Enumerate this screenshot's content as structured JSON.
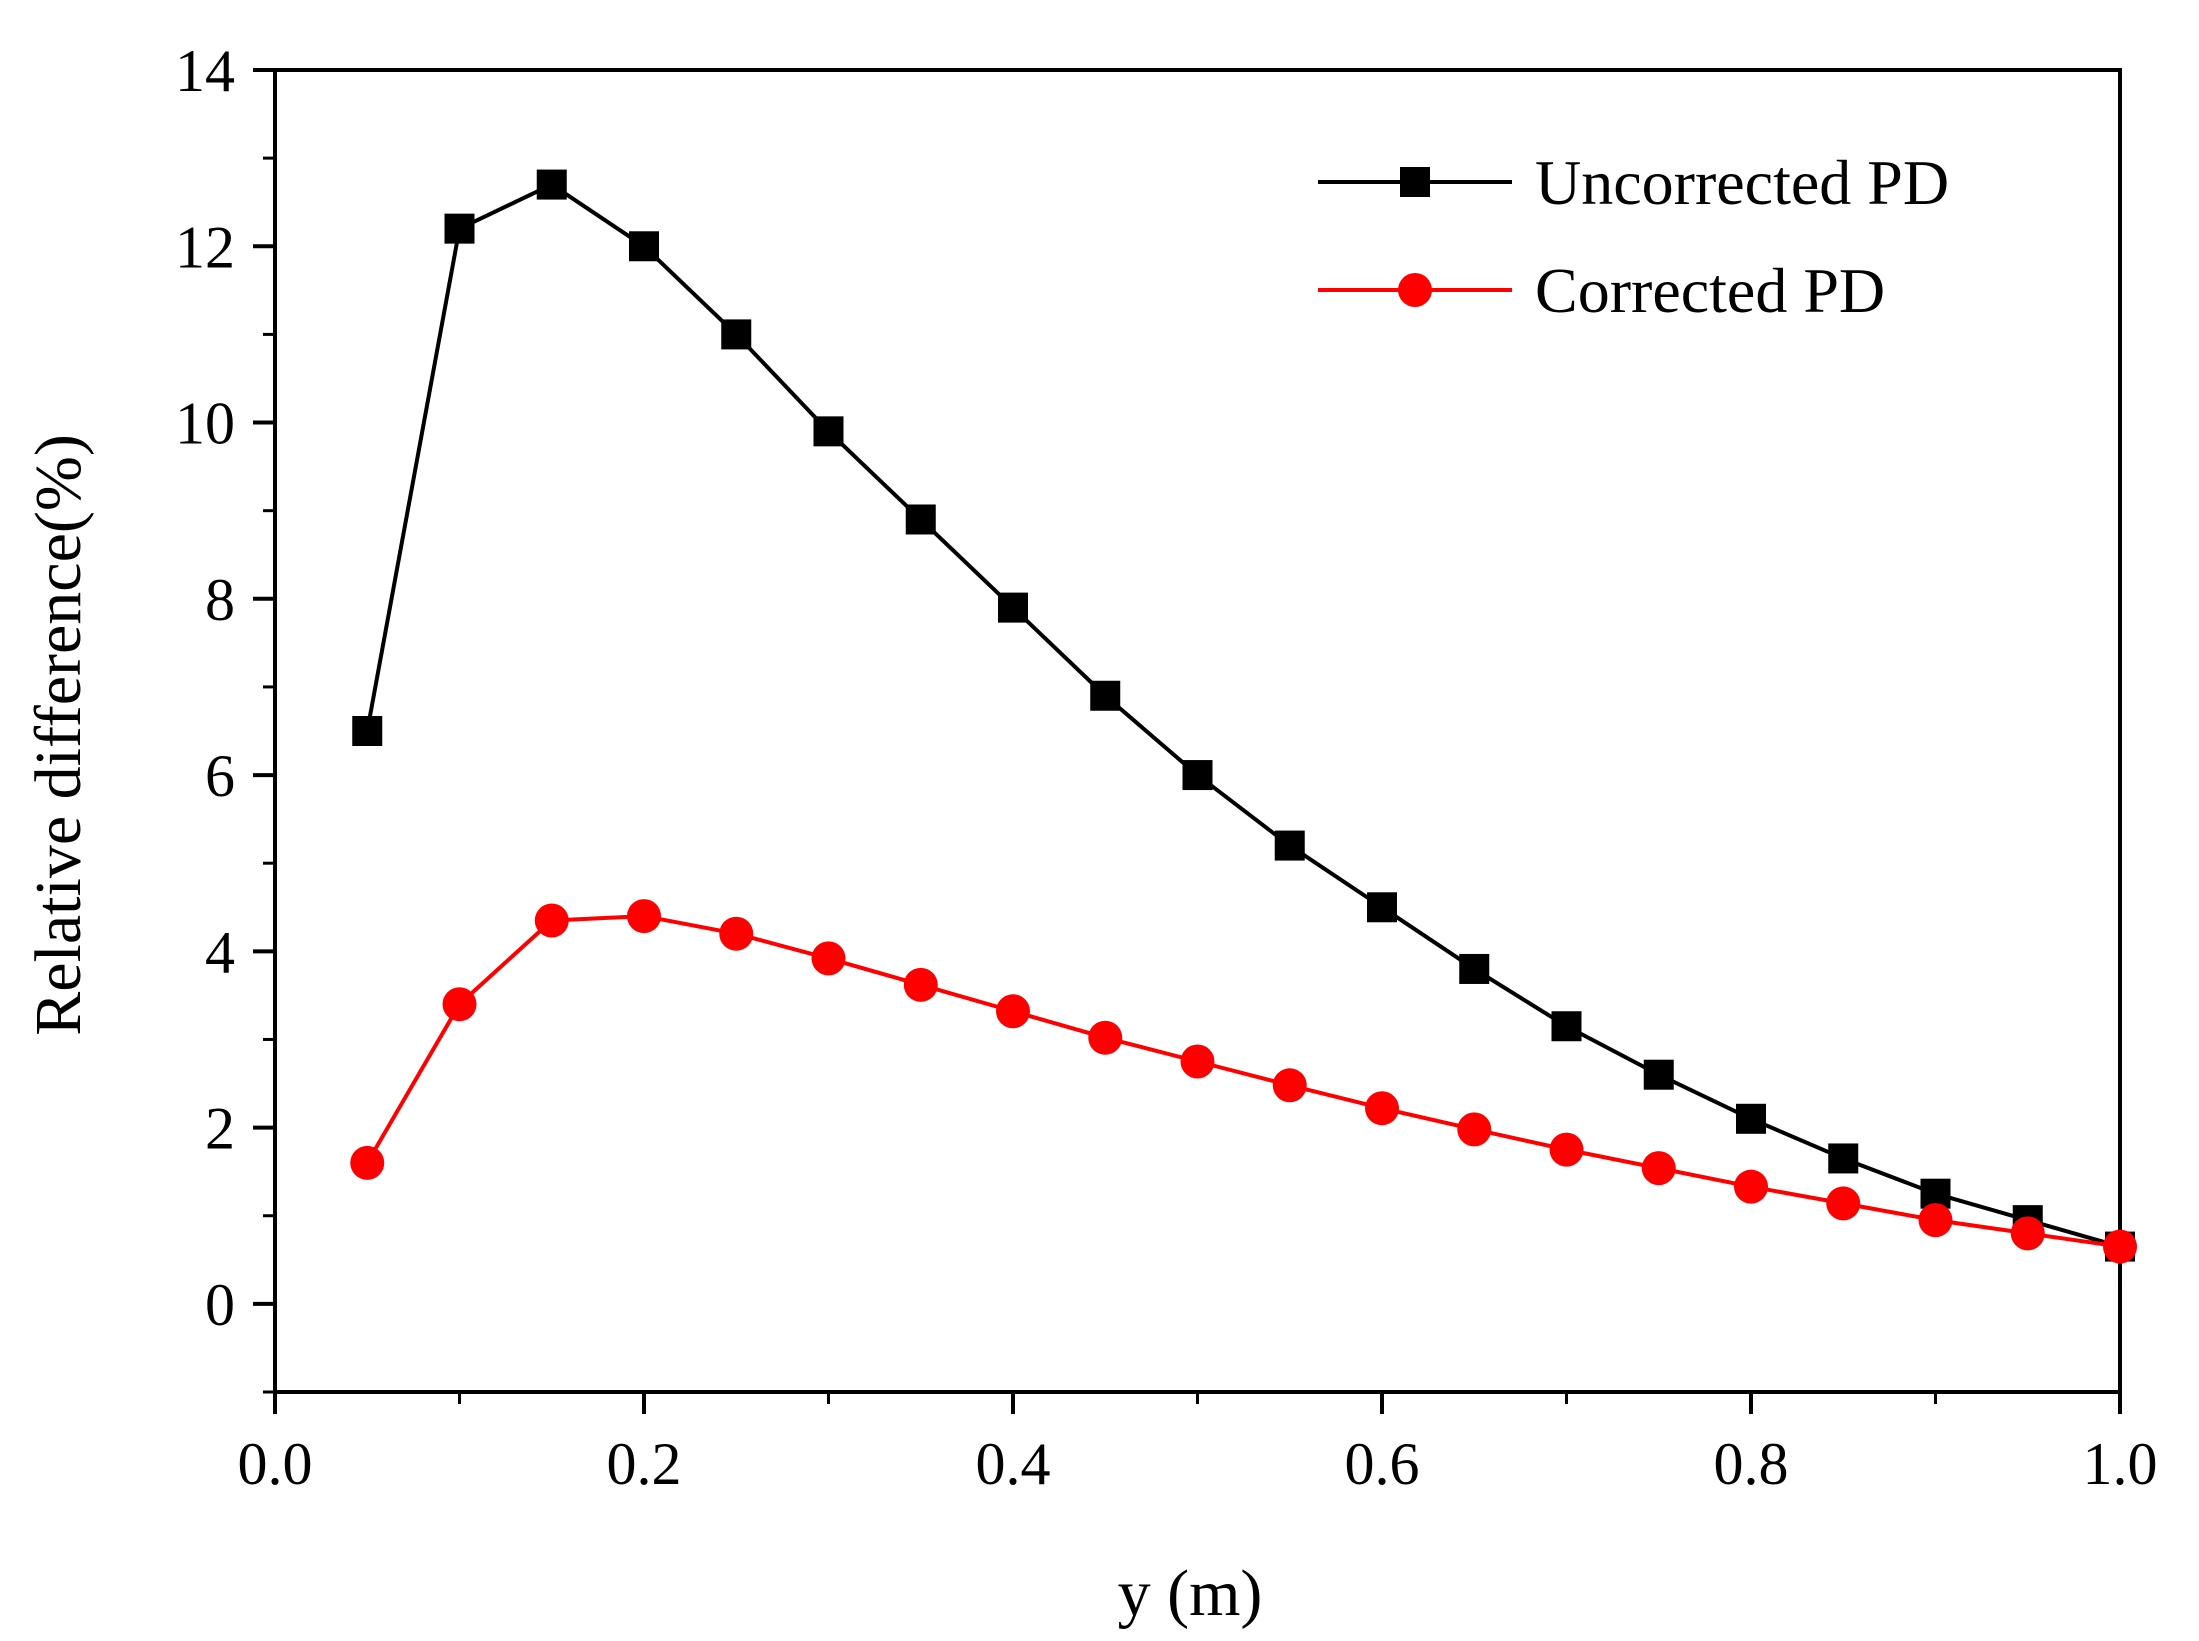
{
  "chart_data": {
    "type": "line",
    "title": "",
    "xlabel": "y (m)",
    "ylabel": "Relative difference(%)",
    "xlim": [
      0.0,
      1.0
    ],
    "ylim": [
      -1,
      14
    ],
    "x_ticks": [
      "0.0",
      "0.2",
      "0.4",
      "0.6",
      "0.8",
      "1.0"
    ],
    "y_ticks": [
      "0",
      "2",
      "4",
      "6",
      "8",
      "10",
      "12",
      "14"
    ],
    "legend_position": "top-right",
    "grid": false,
    "x": [
      0.05,
      0.1,
      0.15,
      0.2,
      0.25,
      0.3,
      0.35,
      0.4,
      0.45,
      0.5,
      0.55,
      0.6,
      0.65,
      0.7,
      0.75,
      0.8,
      0.85,
      0.9,
      0.95,
      1.0
    ],
    "series": [
      {
        "name": "Uncorrected PD",
        "color": "#000000",
        "marker": "square",
        "values": [
          6.5,
          12.2,
          12.7,
          12.0,
          11.0,
          9.9,
          8.9,
          7.9,
          6.9,
          6.0,
          5.2,
          4.5,
          3.8,
          3.15,
          2.6,
          2.1,
          1.65,
          1.25,
          0.95,
          0.65
        ]
      },
      {
        "name": "Corrected PD",
        "color": "#ff0000",
        "marker": "circle",
        "values": [
          1.6,
          3.4,
          4.35,
          4.4,
          4.2,
          3.92,
          3.62,
          3.32,
          3.02,
          2.75,
          2.48,
          2.22,
          1.98,
          1.75,
          1.54,
          1.33,
          1.14,
          0.95,
          0.8,
          0.65
        ]
      }
    ]
  }
}
